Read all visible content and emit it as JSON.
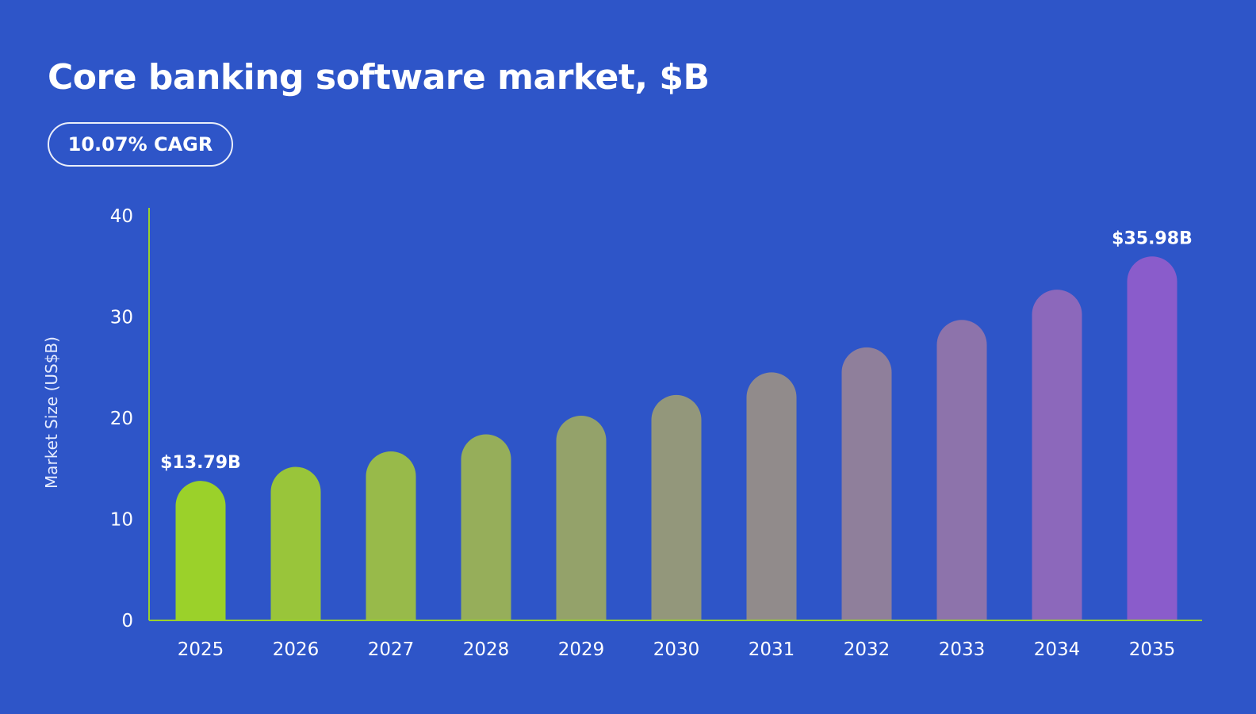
{
  "header": {
    "title": "Core banking software market, $B",
    "badge": "10.07% CAGR"
  },
  "colors": {
    "background": "#2E55C8",
    "axis": "#9BD12A",
    "bar_start": "#9BD12A",
    "bar_end": "#8A5CCB"
  },
  "chart_data": {
    "type": "bar",
    "title": "Core banking software market, $B",
    "xlabel": "",
    "ylabel": "Market Size (US$B)",
    "ylim": [
      0,
      40
    ],
    "yticks": [
      0,
      10,
      20,
      30,
      40
    ],
    "categories": [
      "2025",
      "2026",
      "2027",
      "2028",
      "2029",
      "2030",
      "2031",
      "2032",
      "2033",
      "2034",
      "2035"
    ],
    "values": [
      13.79,
      15.18,
      16.71,
      18.39,
      20.24,
      22.28,
      24.52,
      26.99,
      29.71,
      32.7,
      35.98
    ],
    "data_labels": [
      {
        "index": 0,
        "text": "$13.79B"
      },
      {
        "index": 10,
        "text": "$35.98B"
      }
    ],
    "grid": false,
    "legend": "none"
  }
}
